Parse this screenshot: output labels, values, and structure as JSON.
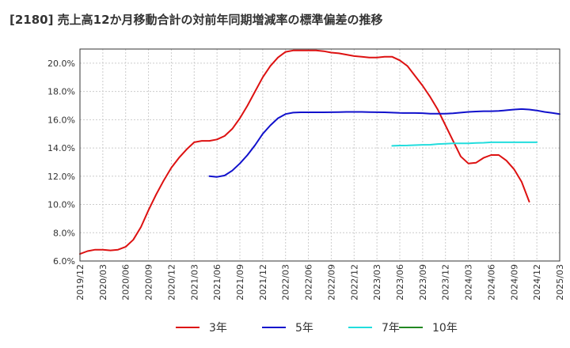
{
  "chart_data": {
    "type": "line",
    "title": "[2180]  売上高12か月移動合計の対前年同期増減率の標準偏差の推移",
    "xlabel": "",
    "ylabel": "",
    "ylim": [
      6.0,
      21.0
    ],
    "y_ticks": [
      "6.0%",
      "8.0%",
      "10.0%",
      "12.0%",
      "14.0%",
      "16.0%",
      "18.0%",
      "20.0%"
    ],
    "y_tick_values": [
      6,
      8,
      10,
      12,
      14,
      16,
      18,
      20
    ],
    "x_ticks": [
      "2019/12",
      "2020/03",
      "2020/06",
      "2020/09",
      "2020/12",
      "2021/03",
      "2021/06",
      "2021/09",
      "2021/12",
      "2022/03",
      "2022/06",
      "2022/09",
      "2022/12",
      "2023/03",
      "2023/06",
      "2023/09",
      "2023/12",
      "2024/03",
      "2024/06",
      "2024/09",
      "2024/12",
      "2025/03"
    ],
    "grid": true,
    "legend_position": "bottom",
    "series": [
      {
        "name": "3年",
        "color": "#dd1111",
        "start": "2019/12",
        "values": [
          6.5,
          6.7,
          6.8,
          6.8,
          6.75,
          6.8,
          7.0,
          7.5,
          8.4,
          9.6,
          10.7,
          11.7,
          12.6,
          13.3,
          13.9,
          14.4,
          14.5,
          14.5,
          14.6,
          14.85,
          15.35,
          16.1,
          17.0,
          18.0,
          19.0,
          19.8,
          20.4,
          20.8,
          20.9,
          20.9,
          20.9,
          20.9,
          20.85,
          20.75,
          20.7,
          20.6,
          20.5,
          20.45,
          20.4,
          20.4,
          20.45,
          20.45,
          20.2,
          19.8,
          19.1,
          18.4,
          17.6,
          16.7,
          15.6,
          14.5,
          13.4,
          12.9,
          12.95,
          13.3,
          13.5,
          13.5,
          13.1,
          12.5,
          11.6,
          10.2
        ]
      },
      {
        "name": "5年",
        "color": "#1111cc",
        "start": "2021/05",
        "values": [
          12.0,
          11.95,
          12.05,
          12.4,
          12.9,
          13.5,
          14.2,
          15.0,
          15.6,
          16.1,
          16.4,
          16.5,
          16.52,
          16.52,
          16.52,
          16.52,
          16.53,
          16.54,
          16.55,
          16.55,
          16.55,
          16.54,
          16.53,
          16.52,
          16.5,
          16.48,
          16.47,
          16.47,
          16.46,
          16.43,
          16.42,
          16.42,
          16.45,
          16.5,
          16.55,
          16.58,
          16.6,
          16.6,
          16.62,
          16.67,
          16.72,
          16.75,
          16.72,
          16.65,
          16.55,
          16.48,
          16.4
        ]
      },
      {
        "name": "7年",
        "color": "#22dddd",
        "start": "2023/05",
        "values": [
          14.15,
          14.17,
          14.18,
          14.2,
          14.22,
          14.23,
          14.28,
          14.3,
          14.32,
          14.33,
          14.33,
          14.35,
          14.37,
          14.4,
          14.4,
          14.4,
          14.4,
          14.4,
          14.4,
          14.4
        ]
      },
      {
        "name": "10年",
        "color": "#228822",
        "start": "",
        "values": []
      }
    ]
  }
}
